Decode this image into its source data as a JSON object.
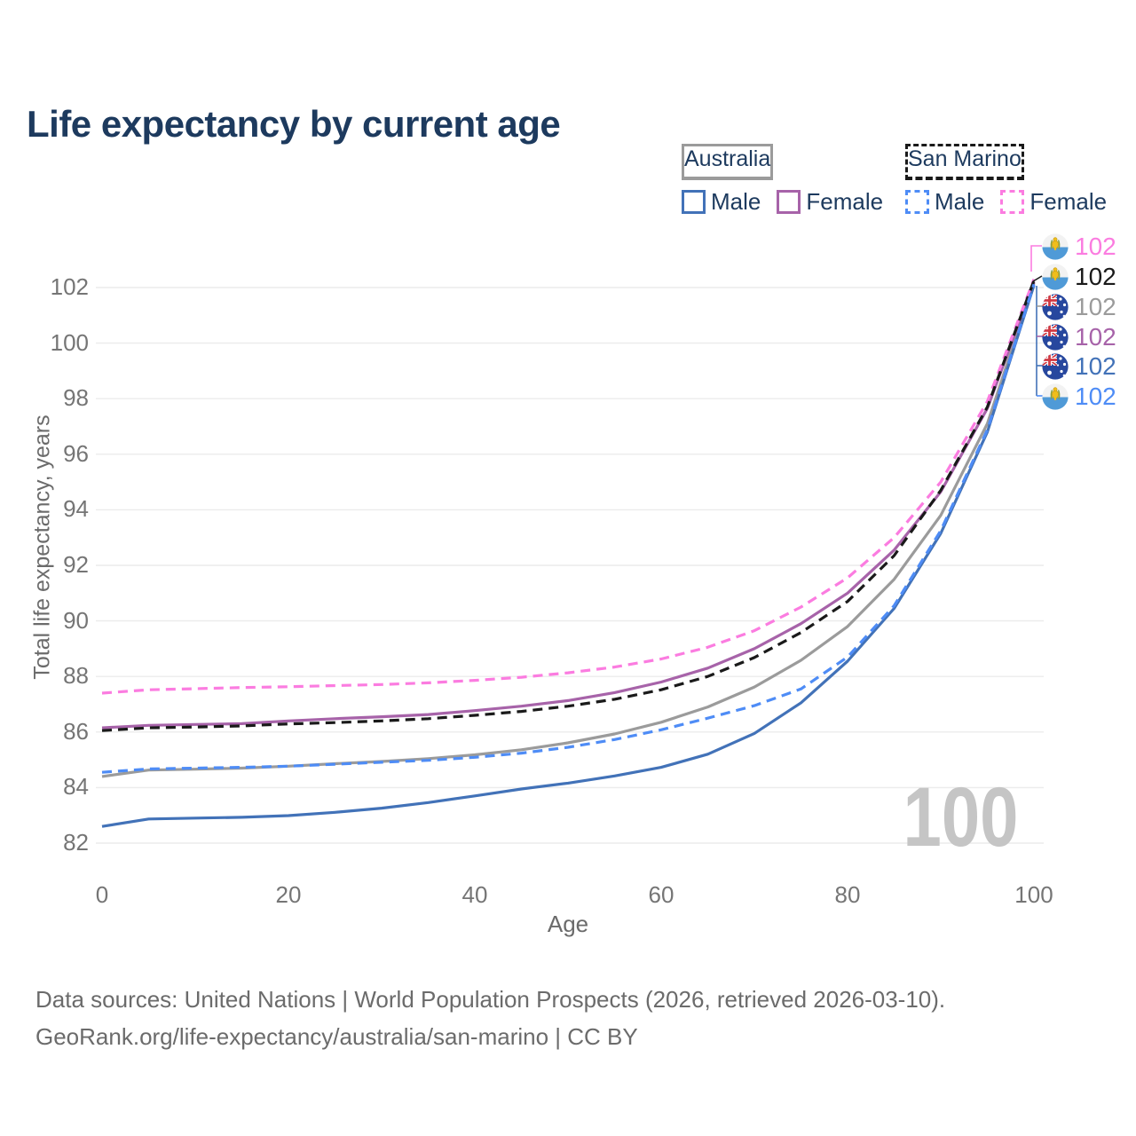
{
  "title": "Life expectancy by current age",
  "colors": {
    "au_male": "#4272b8",
    "au_female": "#a763a9",
    "au_total": "#9b9b9b",
    "sm_male": "#4e8cf6",
    "sm_female": "#fb7ce0",
    "sm_total": "#1a1a1a",
    "navy_text": "#1d3a5e",
    "axis_text": "#757575",
    "grid": "#ececec",
    "watermark": "#c5c5c5"
  },
  "legend": {
    "groups": [
      {
        "title": "Australia",
        "line_style": "solid",
        "underline_color_key": "au_total",
        "items": [
          {
            "label": "Male",
            "color_key": "au_male"
          },
          {
            "label": "Female",
            "color_key": "au_female"
          }
        ]
      },
      {
        "title": "San Marino",
        "line_style": "dashed",
        "underline_color_key": "sm_total",
        "items": [
          {
            "label": "Male",
            "color_key": "sm_male"
          },
          {
            "label": "Female",
            "color_key": "sm_female"
          }
        ]
      }
    ]
  },
  "watermark": "100",
  "footer": {
    "line1": "Data sources: United Nations | World Population Prospects (2026, retrieved 2026-03-10).",
    "line2": "GeoRank.org/life-expectancy/australia/san-marino | CC BY"
  },
  "chart_data": {
    "type": "line",
    "title": "Life expectancy by current age",
    "xlabel": "Age",
    "ylabel": "Total life expectancy, years",
    "xlim": [
      0,
      100
    ],
    "ylim": [
      82,
      102
    ],
    "xticks": [
      0,
      20,
      40,
      60,
      80,
      100
    ],
    "yticks": [
      82,
      84,
      86,
      88,
      90,
      92,
      94,
      96,
      98,
      100,
      102
    ],
    "grid": "horizontal",
    "legend_position": "top-right",
    "x": [
      0,
      5,
      10,
      15,
      20,
      25,
      30,
      35,
      40,
      45,
      50,
      55,
      60,
      65,
      70,
      75,
      80,
      85,
      90,
      95,
      100
    ],
    "series": [
      {
        "name": "San Marino Female",
        "flag": "san-marino",
        "color_key": "sm_female",
        "dash": true,
        "end_label": "102",
        "values": [
          87.4,
          87.52,
          87.56,
          87.6,
          87.63,
          87.67,
          87.71,
          87.77,
          87.86,
          87.97,
          88.13,
          88.34,
          88.63,
          89.05,
          89.65,
          90.5,
          91.55,
          93.0,
          95.0,
          97.9,
          102.3
        ]
      },
      {
        "name": "San Marino Total",
        "flag": "san-marino",
        "color_key": "sm_total",
        "dash": true,
        "end_label": "102",
        "values": [
          86.05,
          86.15,
          86.18,
          86.22,
          86.29,
          86.34,
          86.4,
          86.48,
          86.6,
          86.74,
          86.93,
          87.18,
          87.52,
          88.0,
          88.68,
          89.58,
          90.7,
          92.35,
          94.7,
          97.7,
          102.25
        ]
      },
      {
        "name": "Australia Total",
        "flag": "australia",
        "color_key": "au_total",
        "dash": false,
        "end_label": "102",
        "values": [
          84.4,
          84.63,
          84.66,
          84.7,
          84.77,
          84.86,
          84.94,
          85.04,
          85.18,
          85.36,
          85.61,
          85.93,
          86.35,
          86.9,
          87.62,
          88.58,
          89.8,
          91.5,
          93.8,
          97.1,
          102.18
        ]
      },
      {
        "name": "Australia Female",
        "flag": "australia",
        "color_key": "au_female",
        "dash": false,
        "end_label": "102",
        "values": [
          86.15,
          86.24,
          86.27,
          86.3,
          86.4,
          86.48,
          86.55,
          86.63,
          86.77,
          86.93,
          87.13,
          87.42,
          87.8,
          88.3,
          89.0,
          89.9,
          91.0,
          92.55,
          94.65,
          97.65,
          102.2
        ]
      },
      {
        "name": "Australia Male",
        "flag": "australia",
        "color_key": "au_male",
        "dash": false,
        "end_label": "102",
        "values": [
          82.6,
          82.87,
          82.9,
          82.93,
          82.99,
          83.11,
          83.26,
          83.46,
          83.7,
          83.95,
          84.16,
          84.42,
          84.73,
          85.2,
          85.95,
          87.05,
          88.55,
          90.45,
          93.15,
          96.8,
          102.08
        ]
      },
      {
        "name": "San Marino Male",
        "flag": "san-marino",
        "color_key": "sm_male",
        "dash": true,
        "end_label": "102",
        "values": [
          84.55,
          84.67,
          84.7,
          84.73,
          84.77,
          84.84,
          84.91,
          84.98,
          85.09,
          85.24,
          85.45,
          85.73,
          86.08,
          86.5,
          86.95,
          87.55,
          88.7,
          90.55,
          93.25,
          96.88,
          102.12
        ]
      }
    ]
  }
}
